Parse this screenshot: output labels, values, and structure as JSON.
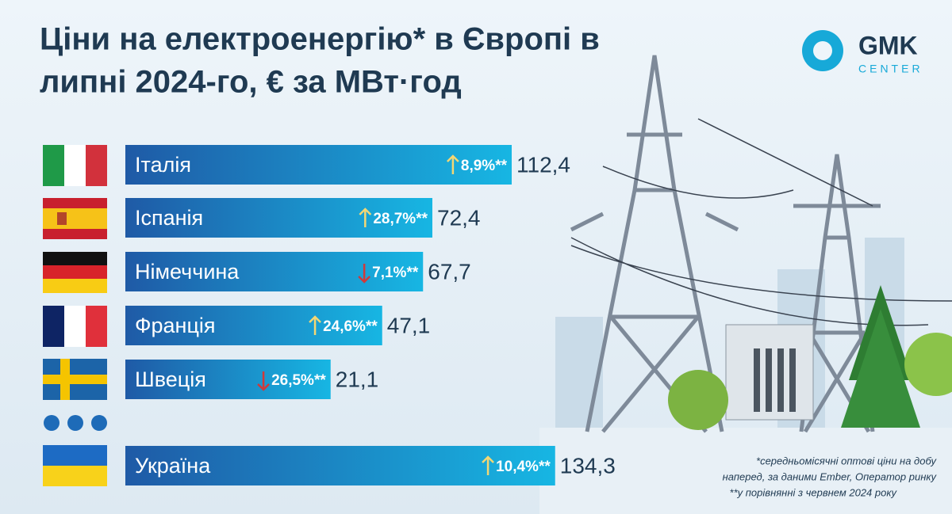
{
  "chart_data": {
    "type": "bar",
    "title": [
      "Ціни на електроенергію* в Європі в",
      "липні 2024-го, € за МВт·год"
    ],
    "categories": [
      "Італія",
      "Іспанія",
      "Німеччина",
      "Франція",
      "Швеція",
      "Україна"
    ],
    "values": [
      112.4,
      72.4,
      67.7,
      47.1,
      21.1,
      134.3
    ],
    "value_labels": [
      "112,4",
      "72,4",
      "67,7",
      "47,1",
      "21,1",
      "134,3"
    ],
    "change_values": [
      8.9,
      28.7,
      7.1,
      24.6,
      26.5,
      10.4
    ],
    "change_labels": [
      "8,9%**",
      "28,7%**",
      "7,1%**",
      "24,6%**",
      "26,5%**",
      "10,4%**"
    ],
    "change_directions": [
      "up",
      "up",
      "down",
      "up",
      "down",
      "up"
    ],
    "notes": [
      "*середньомісячні оптові ціни на добу",
      "наперед, за даними Ember, Оператор ринку",
      "**у порівнянні з червнем 2024 року"
    ],
    "logo": [
      "GMK",
      "CENTER"
    ]
  }
}
